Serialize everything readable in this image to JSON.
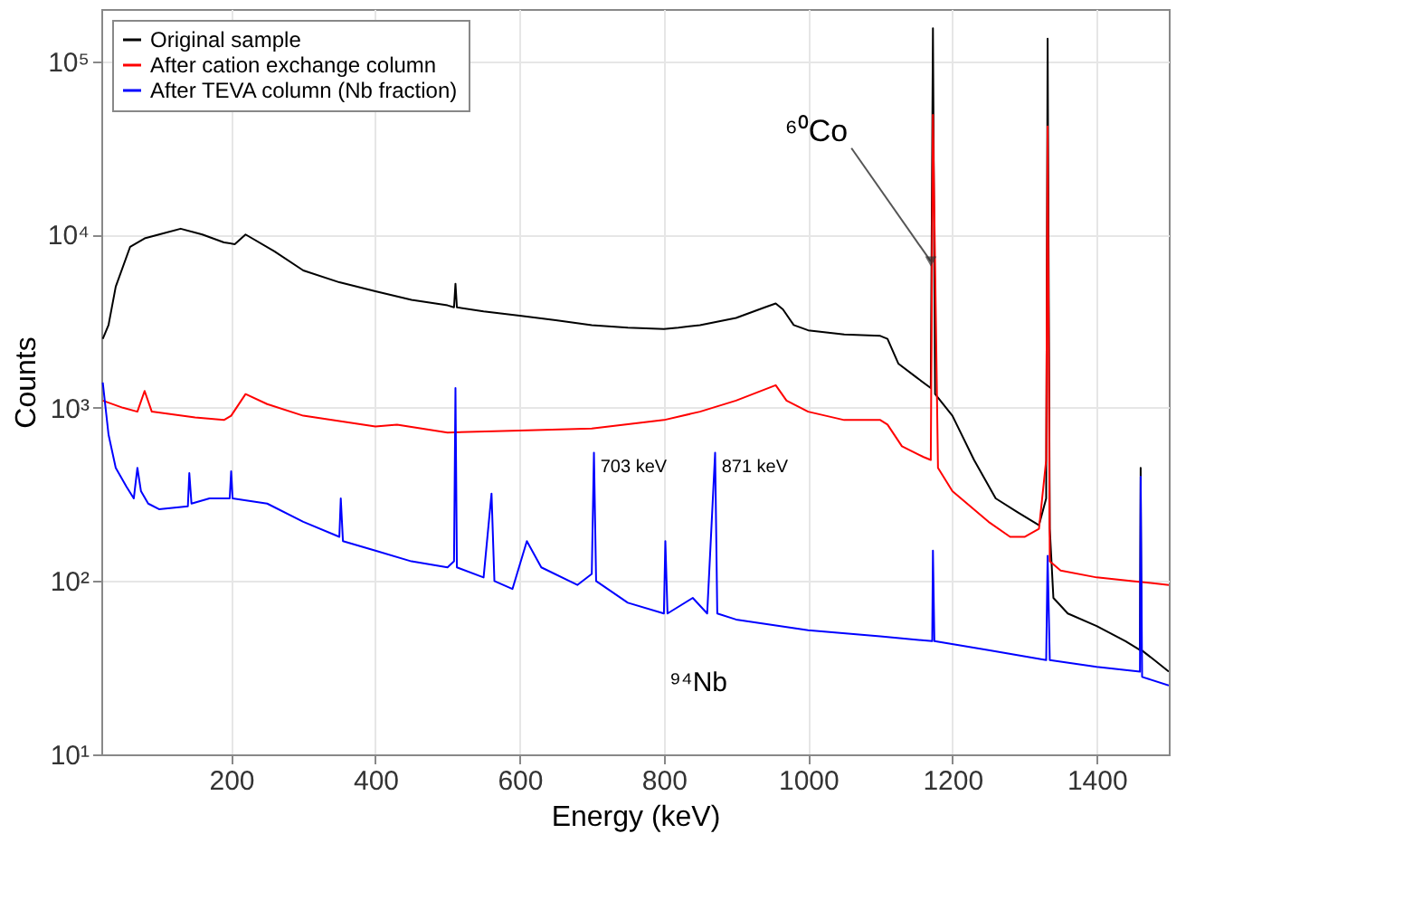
{
  "chart_data": {
    "type": "line",
    "xlabel": "Energy (keV)",
    "ylabel": "Counts",
    "log": "y",
    "grid": true,
    "legend": "top left",
    "marker": "none",
    "line_style": "solid",
    "xlim": [
      20,
      1500
    ],
    "xticks": [
      200,
      400,
      600,
      800,
      1000,
      1200,
      1400
    ],
    "ylim": [
      10,
      200000
    ],
    "yticks": [
      {
        "value": 10,
        "label": "10¹"
      },
      {
        "value": 100,
        "label": "10²"
      },
      {
        "value": 1000,
        "label": "10³"
      },
      {
        "value": 10000,
        "label": "10⁴"
      },
      {
        "value": 100000,
        "label": "10⁵"
      }
    ],
    "annotations": [
      {
        "text": "⁶⁰Co",
        "x": 1170,
        "y": 7000
      },
      {
        "text": "703 keV",
        "x": 703,
        "y": 540
      },
      {
        "text": "871 keV",
        "x": 871,
        "y": 540
      },
      "⁹⁴Nb"
    ],
    "series": [
      {
        "name": "Original sample",
        "color": "#000000",
        "x": [
          22,
          30,
          40,
          60,
          80,
          100,
          130,
          160,
          190,
          205,
          220,
          260,
          300,
          350,
          400,
          450,
          500,
          509,
          511,
          513,
          550,
          600,
          650,
          700,
          750,
          800,
          820,
          850,
          900,
          940,
          955,
          965,
          980,
          1000,
          1050,
          1100,
          1110,
          1125,
          1150,
          1170,
          1173,
          1176,
          1200,
          1230,
          1260,
          1290,
          1320,
          1330,
          1332,
          1335,
          1340,
          1360,
          1400,
          1440,
          1460,
          1461,
          1462,
          1480,
          1500
        ],
        "values": [
          2500,
          3000,
          5000,
          8500,
          9500,
          10000,
          10800,
          10000,
          9000,
          8800,
          10000,
          8000,
          6200,
          5300,
          4700,
          4200,
          3900,
          3800,
          5200,
          3800,
          3600,
          3400,
          3200,
          3000,
          2900,
          2850,
          2900,
          3000,
          3300,
          3800,
          4000,
          3700,
          3000,
          2800,
          2650,
          2600,
          2500,
          1800,
          1500,
          1300,
          155000,
          1200,
          900,
          500,
          300,
          250,
          210,
          300,
          135000,
          200,
          80,
          65,
          55,
          45,
          40,
          450,
          40,
          35,
          30
        ]
      },
      {
        "name": "After cation exchange column",
        "color": "#ff0000",
        "x": [
          22,
          50,
          70,
          80,
          90,
          150,
          190,
          200,
          220,
          250,
          300,
          400,
          430,
          500,
          600,
          700,
          800,
          850,
          900,
          955,
          970,
          1000,
          1050,
          1100,
          1110,
          1130,
          1160,
          1170,
          1173,
          1180,
          1200,
          1250,
          1280,
          1300,
          1320,
          1330,
          1332,
          1335,
          1350,
          1400,
          1450,
          1500
        ],
        "values": [
          1100,
          1000,
          950,
          1250,
          950,
          880,
          850,
          900,
          1200,
          1050,
          900,
          780,
          800,
          720,
          740,
          760,
          850,
          950,
          1100,
          1350,
          1100,
          950,
          850,
          850,
          800,
          600,
          520,
          500,
          49000,
          450,
          330,
          220,
          180,
          180,
          200,
          500,
          42000,
          130,
          115,
          105,
          100,
          95
        ]
      },
      {
        "name": "After TEVA column (Nb fraction)",
        "color": "#0000ff",
        "x": [
          22,
          30,
          40,
          55,
          65,
          70,
          75,
          85,
          100,
          140,
          142,
          145,
          170,
          198,
          200,
          202,
          250,
          300,
          350,
          352,
          355,
          400,
          450,
          500,
          509,
          511,
          513,
          550,
          561,
          565,
          590,
          610,
          630,
          680,
          700,
          703,
          706,
          750,
          800,
          802,
          805,
          840,
          860,
          871,
          874,
          900,
          1000,
          1100,
          1172,
          1173,
          1175,
          1250,
          1330,
          1332,
          1335,
          1400,
          1460,
          1461,
          1463,
          1500
        ],
        "values": [
          1400,
          700,
          450,
          350,
          300,
          450,
          330,
          280,
          260,
          270,
          420,
          280,
          300,
          300,
          430,
          300,
          280,
          220,
          180,
          300,
          170,
          150,
          130,
          120,
          130,
          1300,
          120,
          105,
          320,
          100,
          90,
          170,
          120,
          95,
          110,
          550,
          100,
          75,
          65,
          170,
          65,
          80,
          65,
          550,
          65,
          60,
          52,
          48,
          45,
          150,
          45,
          40,
          35,
          140,
          35,
          32,
          30,
          400,
          28,
          25
        ]
      }
    ]
  }
}
